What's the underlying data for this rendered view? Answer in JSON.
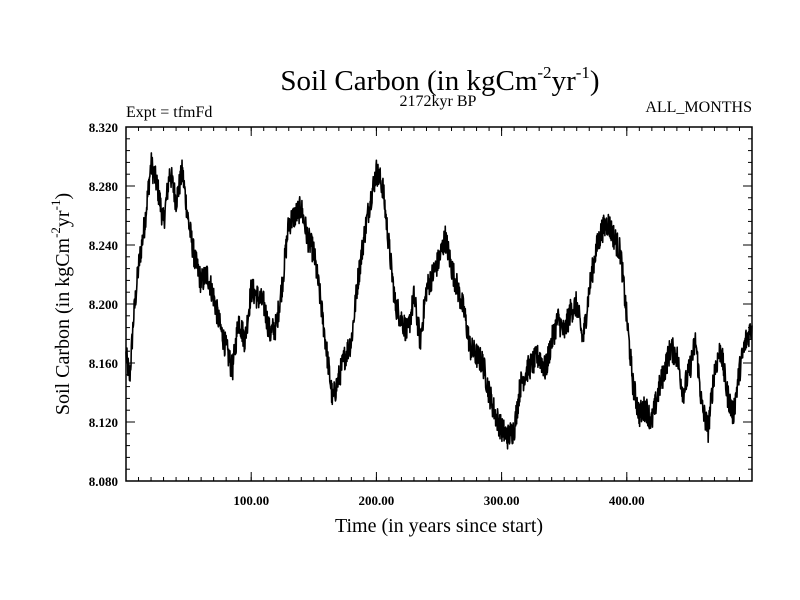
{
  "chart_data": {
    "type": "line",
    "title_main": "Soil Carbon (in kgCm",
    "title_sup1": "-2",
    "title_mid": "yr",
    "title_sup2": "-1",
    "title_end": ")",
    "subtitle": "2172kyr BP",
    "left_note": "Expt = tfmFd",
    "right_note": "ALL_MONTHS",
    "xlabel": "Time (in years since start)",
    "ylabel_main": "Soil Carbon (in kgCm",
    "ylabel_sup1": "-2",
    "ylabel_mid": "yr",
    "ylabel_sup2": "-1",
    "ylabel_end": ")",
    "xlim": [
      0,
      500
    ],
    "ylim": [
      8.08,
      8.32
    ],
    "x_ticks": [
      {
        "value": 100,
        "label": "100.00"
      },
      {
        "value": 200,
        "label": "200.00"
      },
      {
        "value": 300,
        "label": "300.00"
      },
      {
        "value": 400,
        "label": "400.00"
      }
    ],
    "y_ticks": [
      {
        "value": 8.08,
        "label": "8.080"
      },
      {
        "value": 8.12,
        "label": "8.120"
      },
      {
        "value": 8.16,
        "label": "8.160"
      },
      {
        "value": 8.2,
        "label": "8.200"
      },
      {
        "value": 8.24,
        "label": "8.240"
      },
      {
        "value": 8.28,
        "label": "8.280"
      },
      {
        "value": 8.32,
        "label": "8.320"
      }
    ],
    "series": [
      {
        "name": "Soil Carbon",
        "color": "#000000",
        "x": [
          0,
          3,
          6,
          10,
          15,
          20,
          25,
          30,
          35,
          40,
          45,
          50,
          55,
          60,
          65,
          70,
          75,
          80,
          85,
          90,
          95,
          100,
          105,
          110,
          115,
          120,
          125,
          130,
          135,
          140,
          145,
          150,
          155,
          160,
          165,
          170,
          175,
          180,
          185,
          190,
          195,
          200,
          205,
          210,
          215,
          220,
          225,
          230,
          235,
          240,
          245,
          250,
          255,
          260,
          265,
          270,
          275,
          280,
          285,
          290,
          295,
          300,
          305,
          310,
          315,
          320,
          325,
          330,
          335,
          340,
          345,
          350,
          355,
          360,
          365,
          370,
          375,
          380,
          385,
          390,
          395,
          400,
          405,
          410,
          415,
          420,
          425,
          430,
          435,
          440,
          445,
          450,
          455,
          460,
          465,
          470,
          475,
          480,
          485,
          490,
          495,
          500
        ],
        "values": [
          8.165,
          8.15,
          8.19,
          8.225,
          8.255,
          8.295,
          8.28,
          8.255,
          8.29,
          8.27,
          8.29,
          8.255,
          8.23,
          8.215,
          8.22,
          8.205,
          8.185,
          8.17,
          8.155,
          8.19,
          8.175,
          8.21,
          8.205,
          8.2,
          8.18,
          8.185,
          8.215,
          8.255,
          8.26,
          8.265,
          8.245,
          8.235,
          8.205,
          8.17,
          8.135,
          8.15,
          8.165,
          8.175,
          8.215,
          8.245,
          8.27,
          8.29,
          8.28,
          8.24,
          8.2,
          8.19,
          8.18,
          8.205,
          8.175,
          8.21,
          8.22,
          8.23,
          8.245,
          8.225,
          8.21,
          8.195,
          8.17,
          8.165,
          8.16,
          8.14,
          8.125,
          8.115,
          8.11,
          8.115,
          8.145,
          8.155,
          8.16,
          8.165,
          8.155,
          8.175,
          8.19,
          8.18,
          8.195,
          8.2,
          8.175,
          8.21,
          8.235,
          8.25,
          8.255,
          8.245,
          8.235,
          8.19,
          8.145,
          8.125,
          8.13,
          8.12,
          8.14,
          8.155,
          8.17,
          8.165,
          8.14,
          8.155,
          8.175,
          8.13,
          8.115,
          8.155,
          8.17,
          8.14,
          8.125,
          8.155,
          8.175,
          8.185
        ],
        "noise_amplitude": 0.009
      }
    ]
  }
}
